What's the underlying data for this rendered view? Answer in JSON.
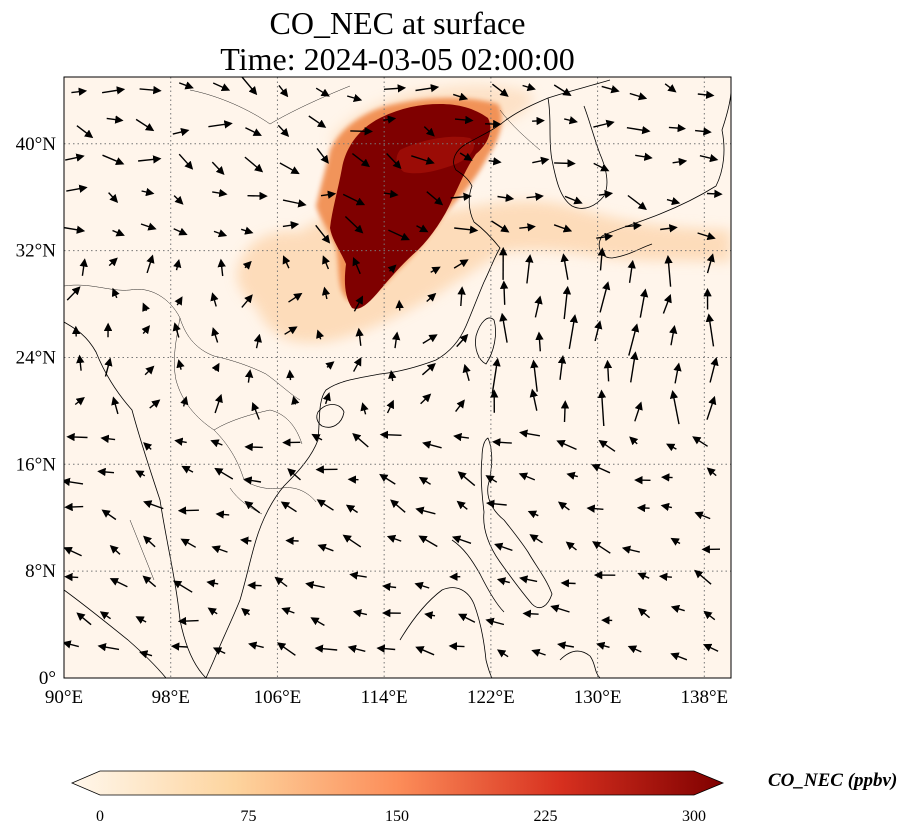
{
  "title": {
    "line1": "CO_NEC at surface",
    "line2": "Time: 2024-03-05 02:00:00"
  },
  "map": {
    "projection": "PlateCarree",
    "lon_range": [
      90,
      140
    ],
    "lat_range": [
      0,
      45
    ],
    "gridlines": "dotted",
    "lon_ticks": [
      {
        "value": 90,
        "label": "90°E"
      },
      {
        "value": 98,
        "label": "98°E"
      },
      {
        "value": 106,
        "label": "106°E"
      },
      {
        "value": 114,
        "label": "114°E"
      },
      {
        "value": 122,
        "label": "122°E"
      },
      {
        "value": 130,
        "label": "130°E"
      },
      {
        "value": 138,
        "label": "138°E"
      }
    ],
    "lat_ticks": [
      {
        "value": 0,
        "label": "0°"
      },
      {
        "value": 8,
        "label": "8°N"
      },
      {
        "value": 16,
        "label": "16°N"
      },
      {
        "value": 24,
        "label": "24°N"
      },
      {
        "value": 32,
        "label": "32°N"
      },
      {
        "value": 40,
        "label": "40°N"
      }
    ],
    "field_colors": {
      "background": "#fff5eb",
      "low": "#fdd6ae",
      "mid": "#f16913",
      "high": "#7f0000"
    }
  },
  "colorbar": {
    "label": "CO_NEC (ppbv)",
    "min": 0,
    "max": 300,
    "extend": "both",
    "colormap": "OrRd-like",
    "stops": [
      "#fff7ec",
      "#fdd49e",
      "#fc8d59",
      "#d7301f",
      "#7f0000"
    ],
    "ticks": [
      {
        "value": 0,
        "label": "0"
      },
      {
        "value": 75,
        "label": "75"
      },
      {
        "value": 150,
        "label": "150"
      },
      {
        "value": 225,
        "label": "225"
      },
      {
        "value": 300,
        "label": "300"
      }
    ]
  }
}
